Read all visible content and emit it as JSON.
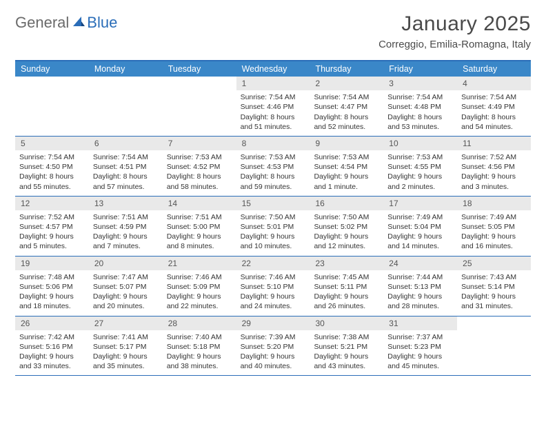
{
  "logo": {
    "text1": "General",
    "text2": "Blue"
  },
  "title": "January 2025",
  "location": "Correggio, Emilia-Romagna, Italy",
  "colors": {
    "header_bg": "#3a87c8",
    "header_text": "#ffffff",
    "border": "#2a6db8",
    "daynum_bg": "#e9e9e9",
    "body_text": "#333333",
    "logo_gray": "#6a6a6a",
    "logo_blue": "#2a6db8"
  },
  "day_names": [
    "Sunday",
    "Monday",
    "Tuesday",
    "Wednesday",
    "Thursday",
    "Friday",
    "Saturday"
  ],
  "weeks": [
    [
      {
        "day": null
      },
      {
        "day": null
      },
      {
        "day": null
      },
      {
        "day": "1",
        "sunrise": "7:54 AM",
        "sunset": "4:46 PM",
        "daylight": "8 hours and 51 minutes."
      },
      {
        "day": "2",
        "sunrise": "7:54 AM",
        "sunset": "4:47 PM",
        "daylight": "8 hours and 52 minutes."
      },
      {
        "day": "3",
        "sunrise": "7:54 AM",
        "sunset": "4:48 PM",
        "daylight": "8 hours and 53 minutes."
      },
      {
        "day": "4",
        "sunrise": "7:54 AM",
        "sunset": "4:49 PM",
        "daylight": "8 hours and 54 minutes."
      }
    ],
    [
      {
        "day": "5",
        "sunrise": "7:54 AM",
        "sunset": "4:50 PM",
        "daylight": "8 hours and 55 minutes."
      },
      {
        "day": "6",
        "sunrise": "7:54 AM",
        "sunset": "4:51 PM",
        "daylight": "8 hours and 57 minutes."
      },
      {
        "day": "7",
        "sunrise": "7:53 AM",
        "sunset": "4:52 PM",
        "daylight": "8 hours and 58 minutes."
      },
      {
        "day": "8",
        "sunrise": "7:53 AM",
        "sunset": "4:53 PM",
        "daylight": "8 hours and 59 minutes."
      },
      {
        "day": "9",
        "sunrise": "7:53 AM",
        "sunset": "4:54 PM",
        "daylight": "9 hours and 1 minute."
      },
      {
        "day": "10",
        "sunrise": "7:53 AM",
        "sunset": "4:55 PM",
        "daylight": "9 hours and 2 minutes."
      },
      {
        "day": "11",
        "sunrise": "7:52 AM",
        "sunset": "4:56 PM",
        "daylight": "9 hours and 3 minutes."
      }
    ],
    [
      {
        "day": "12",
        "sunrise": "7:52 AM",
        "sunset": "4:57 PM",
        "daylight": "9 hours and 5 minutes."
      },
      {
        "day": "13",
        "sunrise": "7:51 AM",
        "sunset": "4:59 PM",
        "daylight": "9 hours and 7 minutes."
      },
      {
        "day": "14",
        "sunrise": "7:51 AM",
        "sunset": "5:00 PM",
        "daylight": "9 hours and 8 minutes."
      },
      {
        "day": "15",
        "sunrise": "7:50 AM",
        "sunset": "5:01 PM",
        "daylight": "9 hours and 10 minutes."
      },
      {
        "day": "16",
        "sunrise": "7:50 AM",
        "sunset": "5:02 PM",
        "daylight": "9 hours and 12 minutes."
      },
      {
        "day": "17",
        "sunrise": "7:49 AM",
        "sunset": "5:04 PM",
        "daylight": "9 hours and 14 minutes."
      },
      {
        "day": "18",
        "sunrise": "7:49 AM",
        "sunset": "5:05 PM",
        "daylight": "9 hours and 16 minutes."
      }
    ],
    [
      {
        "day": "19",
        "sunrise": "7:48 AM",
        "sunset": "5:06 PM",
        "daylight": "9 hours and 18 minutes."
      },
      {
        "day": "20",
        "sunrise": "7:47 AM",
        "sunset": "5:07 PM",
        "daylight": "9 hours and 20 minutes."
      },
      {
        "day": "21",
        "sunrise": "7:46 AM",
        "sunset": "5:09 PM",
        "daylight": "9 hours and 22 minutes."
      },
      {
        "day": "22",
        "sunrise": "7:46 AM",
        "sunset": "5:10 PM",
        "daylight": "9 hours and 24 minutes."
      },
      {
        "day": "23",
        "sunrise": "7:45 AM",
        "sunset": "5:11 PM",
        "daylight": "9 hours and 26 minutes."
      },
      {
        "day": "24",
        "sunrise": "7:44 AM",
        "sunset": "5:13 PM",
        "daylight": "9 hours and 28 minutes."
      },
      {
        "day": "25",
        "sunrise": "7:43 AM",
        "sunset": "5:14 PM",
        "daylight": "9 hours and 31 minutes."
      }
    ],
    [
      {
        "day": "26",
        "sunrise": "7:42 AM",
        "sunset": "5:16 PM",
        "daylight": "9 hours and 33 minutes."
      },
      {
        "day": "27",
        "sunrise": "7:41 AM",
        "sunset": "5:17 PM",
        "daylight": "9 hours and 35 minutes."
      },
      {
        "day": "28",
        "sunrise": "7:40 AM",
        "sunset": "5:18 PM",
        "daylight": "9 hours and 38 minutes."
      },
      {
        "day": "29",
        "sunrise": "7:39 AM",
        "sunset": "5:20 PM",
        "daylight": "9 hours and 40 minutes."
      },
      {
        "day": "30",
        "sunrise": "7:38 AM",
        "sunset": "5:21 PM",
        "daylight": "9 hours and 43 minutes."
      },
      {
        "day": "31",
        "sunrise": "7:37 AM",
        "sunset": "5:23 PM",
        "daylight": "9 hours and 45 minutes."
      },
      {
        "day": null
      }
    ]
  ],
  "labels": {
    "sunrise": "Sunrise:",
    "sunset": "Sunset:",
    "daylight": "Daylight:"
  }
}
